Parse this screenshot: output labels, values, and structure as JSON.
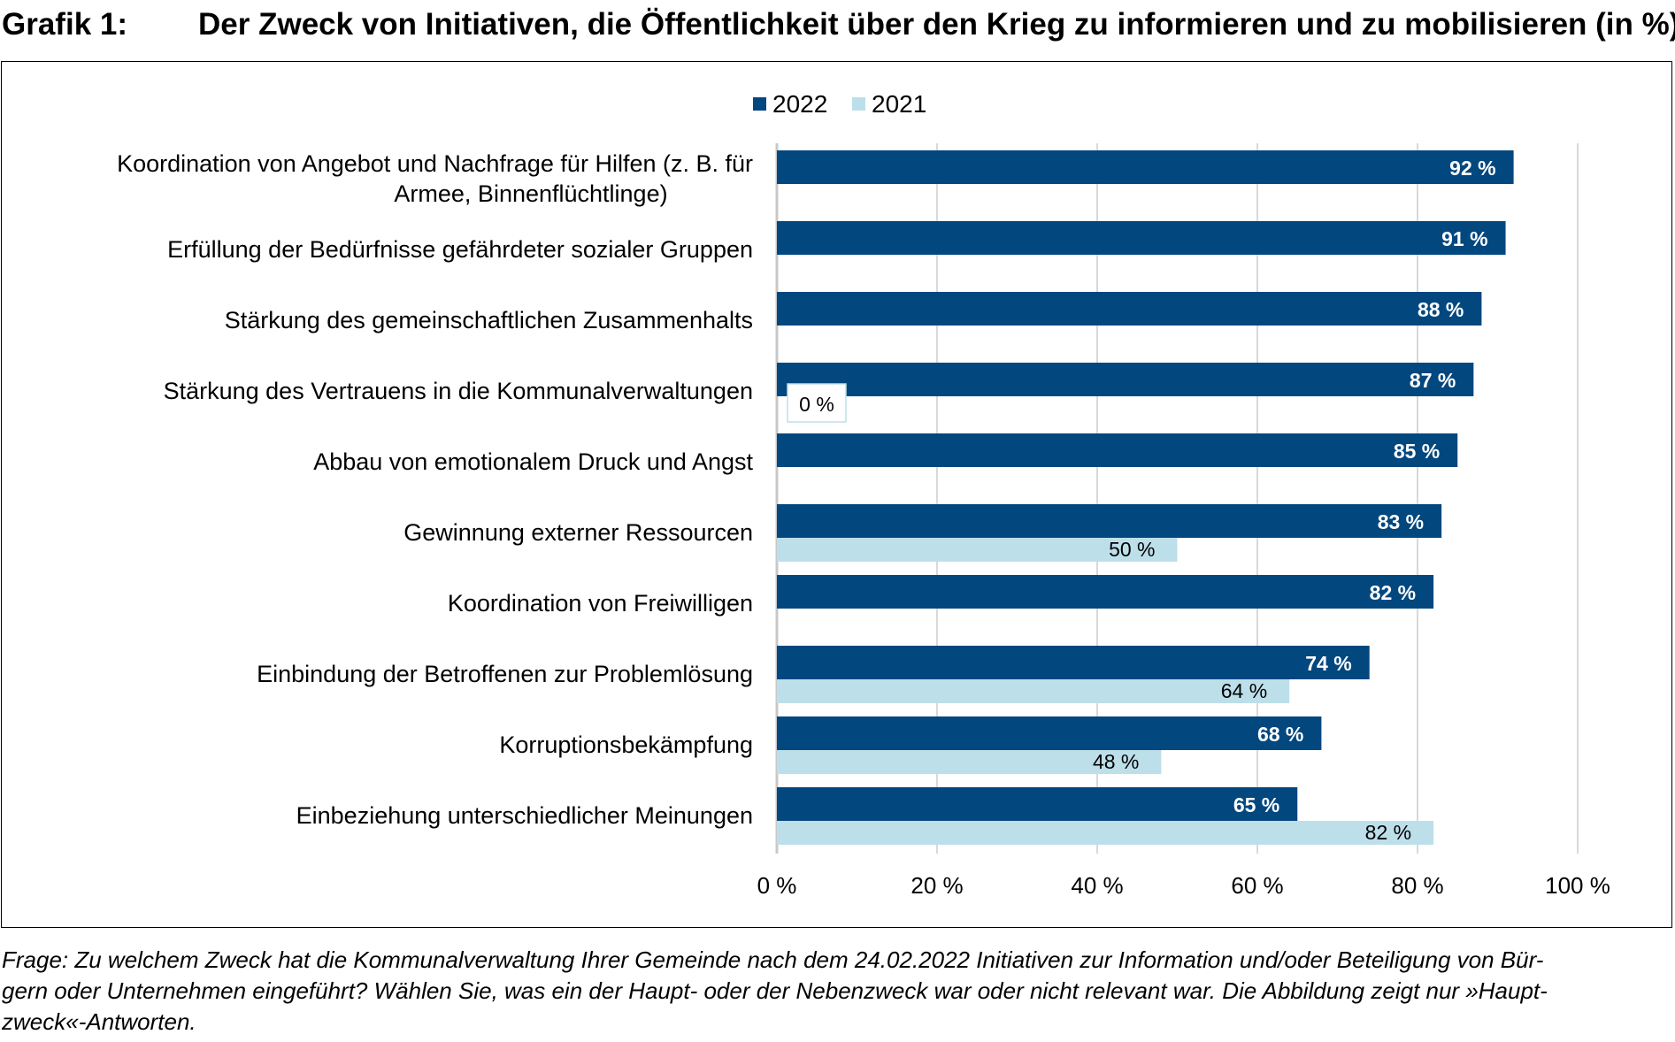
{
  "title": {
    "number": "Grafik 1:",
    "text": "Der Zweck von Initiativen, die Öffentlichkeit über den Krieg zu informieren und zu mobilisieren (in %)"
  },
  "chart_data": {
    "type": "bar",
    "orientation": "horizontal",
    "categories": [
      [
        "Koordination von Angebot und Nachfrage für Hilfen (z. B. für",
        "Armee, Binnenflüchtlinge)"
      ],
      [
        "Erfüllung der Bedürfnisse gefährdeter sozialer Gruppen"
      ],
      [
        "Stärkung des gemeinschaftlichen Zusammenhalts"
      ],
      [
        "Stärkung des Vertrauens in die Kommunalverwaltungen"
      ],
      [
        "Abbau von emotionalem Druck und Angst"
      ],
      [
        "Gewinnung externer Ressourcen"
      ],
      [
        "Koordination von Freiwilligen"
      ],
      [
        "Einbindung der Betroffenen zur Problemlösung"
      ],
      [
        "Korruptionsbekämpfung"
      ],
      [
        "Einbeziehung unterschiedlicher Meinungen"
      ]
    ],
    "series": [
      {
        "name": "2022",
        "color": "#03477f",
        "values": [
          92,
          91,
          88,
          87,
          85,
          83,
          82,
          74,
          68,
          65
        ],
        "labels": [
          "92 %",
          "91 %",
          "88 %",
          "87 %",
          "85 %",
          "83 %",
          "82 %",
          "74 %",
          "68 %",
          "65 %"
        ]
      },
      {
        "name": "2021",
        "color": "#bddfea",
        "values": [
          null,
          null,
          null,
          0,
          null,
          50,
          null,
          64,
          48,
          82
        ],
        "labels": [
          null,
          null,
          null,
          "0 %",
          null,
          "50 %",
          null,
          "64 %",
          "48 %",
          "82 %"
        ]
      }
    ],
    "xlim": [
      0,
      100
    ],
    "xticks": [
      "0 %",
      "20 %",
      "40 %",
      "60 %",
      "80 %",
      "100 %"
    ],
    "grid": true,
    "legend": "top-center"
  },
  "footnote": [
    "Frage: Zu welchem Zweck hat die Kommunalverwaltung Ihrer Gemeinde nach dem 24.02.2022 Initiativen zur Information und/oder Beteiligung von Bür-",
    "gern oder Unternehmen eingeführt? Wählen Sie, was ein der Haupt- oder der Nebenzweck war oder nicht relevant war. Die Abbildung zeigt nur »Haupt-",
    "zweck«-Antworten."
  ]
}
